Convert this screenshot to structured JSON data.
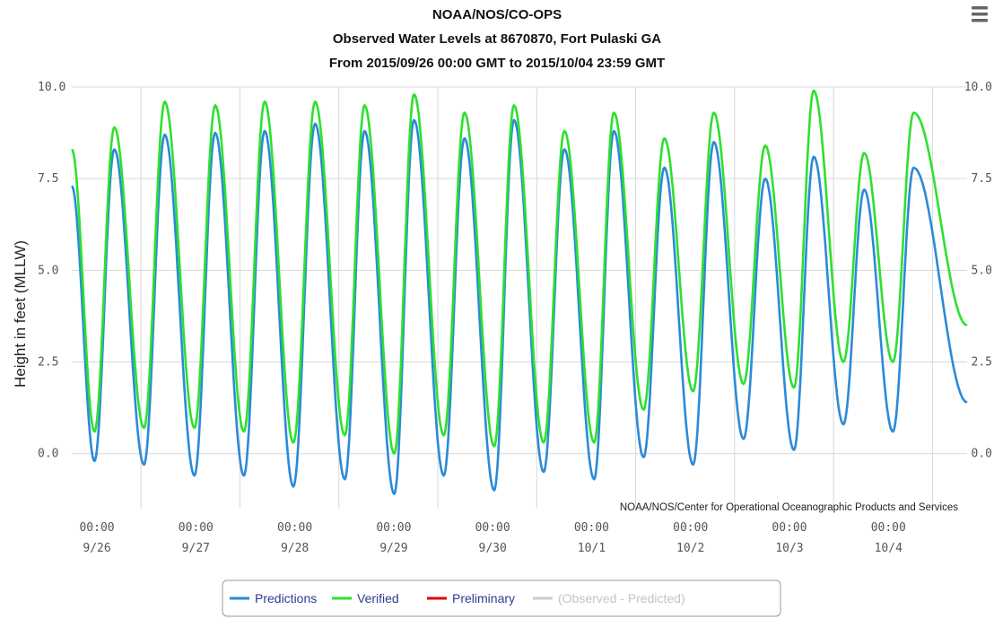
{
  "chart_data": {
    "type": "line",
    "title_lines": [
      "NOAA/NOS/CO-OPS",
      "Observed Water Levels at 8670870, Fort Pulaski GA",
      "From 2015/09/26 00:00 GMT to 2015/10/04 23:59 GMT"
    ],
    "ylabel": "Height in feet (MLLW)",
    "ylim": [
      -1.5,
      10
    ],
    "y_ticks": [
      "10.0",
      "7.5",
      "5.0",
      "2.5",
      "0.0"
    ],
    "y_tick_values": [
      10,
      7.5,
      5,
      2.5,
      0
    ],
    "x_range_days": [
      -0.2,
      8.85
    ],
    "x_ticks": [
      {
        "time": "00:00",
        "date": "9/26"
      },
      {
        "time": "00:00",
        "date": "9/27"
      },
      {
        "time": "00:00",
        "date": "9/28"
      },
      {
        "time": "00:00",
        "date": "9/29"
      },
      {
        "time": "00:00",
        "date": "9/30"
      },
      {
        "time": "00:00",
        "date": "10/1"
      },
      {
        "time": "00:00",
        "date": "10/2"
      },
      {
        "time": "00:00",
        "date": "10/3"
      },
      {
        "time": "00:00",
        "date": "10/4"
      }
    ],
    "credit": "NOAA/NOS/Center for Operational Oceanographic Products and Services",
    "grid": true,
    "legend_position": "bottom-center",
    "series": [
      {
        "name": "Predictions",
        "color": "#2b8ad8",
        "start": {
          "t": -0.2,
          "v": 7.3
        },
        "extrema": [
          {
            "t": 0.03,
            "v": -0.2
          },
          {
            "t": 0.23,
            "v": 8.3
          },
          {
            "t": 0.53,
            "v": -0.3
          },
          {
            "t": 0.74,
            "v": 8.7
          },
          {
            "t": 1.04,
            "v": -0.6
          },
          {
            "t": 1.25,
            "v": 8.75
          },
          {
            "t": 1.54,
            "v": -0.6
          },
          {
            "t": 1.75,
            "v": 8.8
          },
          {
            "t": 2.04,
            "v": -0.9
          },
          {
            "t": 2.26,
            "v": 9.0
          },
          {
            "t": 2.56,
            "v": -0.7
          },
          {
            "t": 2.76,
            "v": 8.8
          },
          {
            "t": 3.06,
            "v": -1.1
          },
          {
            "t": 3.26,
            "v": 9.1
          },
          {
            "t": 3.56,
            "v": -0.6
          },
          {
            "t": 3.77,
            "v": 8.6
          },
          {
            "t": 4.07,
            "v": -1.0
          },
          {
            "t": 4.27,
            "v": 9.1
          },
          {
            "t": 4.57,
            "v": -0.5
          },
          {
            "t": 4.78,
            "v": 8.3
          },
          {
            "t": 5.08,
            "v": -0.7
          },
          {
            "t": 5.28,
            "v": 8.8
          },
          {
            "t": 5.58,
            "v": -0.1
          },
          {
            "t": 5.79,
            "v": 7.8
          },
          {
            "t": 6.08,
            "v": -0.3
          },
          {
            "t": 6.29,
            "v": 8.5
          },
          {
            "t": 6.59,
            "v": 0.4
          },
          {
            "t": 6.81,
            "v": 7.5
          },
          {
            "t": 7.1,
            "v": 0.1
          },
          {
            "t": 7.3,
            "v": 8.1
          },
          {
            "t": 7.6,
            "v": 0.8
          },
          {
            "t": 7.81,
            "v": 7.2
          },
          {
            "t": 8.1,
            "v": 0.6
          },
          {
            "t": 8.31,
            "v": 7.8
          }
        ],
        "end": {
          "t": 8.85,
          "v": 1.4
        }
      },
      {
        "name": "Verified",
        "color": "#2ee02e",
        "start": {
          "t": -0.2,
          "v": 8.3
        },
        "extrema": [
          {
            "t": 0.03,
            "v": 0.6
          },
          {
            "t": 0.23,
            "v": 8.9
          },
          {
            "t": 0.53,
            "v": 0.7
          },
          {
            "t": 0.74,
            "v": 9.6
          },
          {
            "t": 1.04,
            "v": 0.7
          },
          {
            "t": 1.25,
            "v": 9.5
          },
          {
            "t": 1.54,
            "v": 0.6
          },
          {
            "t": 1.75,
            "v": 9.6
          },
          {
            "t": 2.04,
            "v": 0.3
          },
          {
            "t": 2.26,
            "v": 9.6
          },
          {
            "t": 2.56,
            "v": 0.5
          },
          {
            "t": 2.76,
            "v": 9.5
          },
          {
            "t": 3.06,
            "v": 0.0
          },
          {
            "t": 3.26,
            "v": 9.8
          },
          {
            "t": 3.56,
            "v": 0.5
          },
          {
            "t": 3.77,
            "v": 9.3
          },
          {
            "t": 4.07,
            "v": 0.2
          },
          {
            "t": 4.27,
            "v": 9.5
          },
          {
            "t": 4.57,
            "v": 0.3
          },
          {
            "t": 4.78,
            "v": 8.8
          },
          {
            "t": 5.08,
            "v": 0.3
          },
          {
            "t": 5.28,
            "v": 9.3
          },
          {
            "t": 5.58,
            "v": 1.2
          },
          {
            "t": 5.79,
            "v": 8.6
          },
          {
            "t": 6.08,
            "v": 1.7
          },
          {
            "t": 6.29,
            "v": 9.3
          },
          {
            "t": 6.59,
            "v": 1.9
          },
          {
            "t": 6.81,
            "v": 8.4
          },
          {
            "t": 7.1,
            "v": 1.8
          },
          {
            "t": 7.3,
            "v": 9.9
          },
          {
            "t": 7.6,
            "v": 2.5
          },
          {
            "t": 7.81,
            "v": 8.2
          },
          {
            "t": 8.1,
            "v": 2.5
          },
          {
            "t": 8.31,
            "v": 9.3
          }
        ],
        "end": {
          "t": 8.85,
          "v": 3.5
        }
      }
    ],
    "legend": [
      {
        "label": "Predictions",
        "color": "#2b8ad8",
        "enabled": true
      },
      {
        "label": "Verified",
        "color": "#2ee02e",
        "enabled": true
      },
      {
        "label": "Preliminary",
        "color": "#e00000",
        "enabled": true
      },
      {
        "label": "(Observed - Predicted)",
        "color": "#cccccc",
        "enabled": false
      }
    ]
  },
  "colors": {
    "grid": "#d8d8d8",
    "label_enabled": "#2a3d8f",
    "label_disabled": "#c4c4c4",
    "legend_border": "#999999",
    "menu_icon": "#666666"
  },
  "icons": {
    "menu": "hamburger-menu-icon"
  }
}
